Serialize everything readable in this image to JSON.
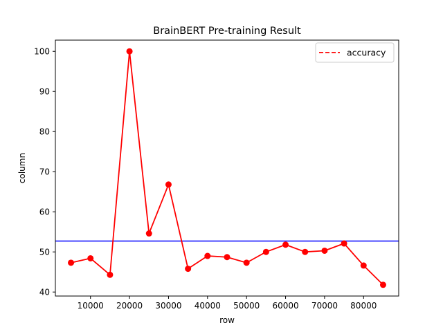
{
  "chart_data": {
    "type": "line",
    "title": "BrainBERT Pre-training Result",
    "xlabel": "row",
    "ylabel": "column",
    "xlim": [
      1000,
      89000
    ],
    "ylim": [
      39.0,
      102.8
    ],
    "x_ticks": [
      10000,
      20000,
      30000,
      40000,
      50000,
      60000,
      70000,
      80000
    ],
    "y_ticks": [
      40,
      50,
      60,
      70,
      80,
      90,
      100
    ],
    "grid": false,
    "legend": {
      "placement": "top-right",
      "entries": [
        "accuracy"
      ]
    },
    "series": [
      {
        "name": "accuracy",
        "color": "#ff0000",
        "line_style": "dashed",
        "marker": "circle",
        "x": [
          5000,
          10000,
          15000,
          20000,
          25000,
          30000,
          35000,
          40000,
          45000,
          50000,
          55000,
          60000,
          65000,
          70000,
          75000,
          80000,
          85000
        ],
        "y": [
          47.3,
          48.4,
          44.3,
          100.0,
          54.6,
          66.8,
          45.8,
          49.0,
          48.7,
          47.3,
          50.0,
          51.8,
          50.0,
          50.3,
          52.1,
          46.6,
          41.8
        ]
      }
    ],
    "reference_lines": [
      {
        "orientation": "horizontal",
        "y": 52.7,
        "color": "#0000ff"
      }
    ]
  }
}
